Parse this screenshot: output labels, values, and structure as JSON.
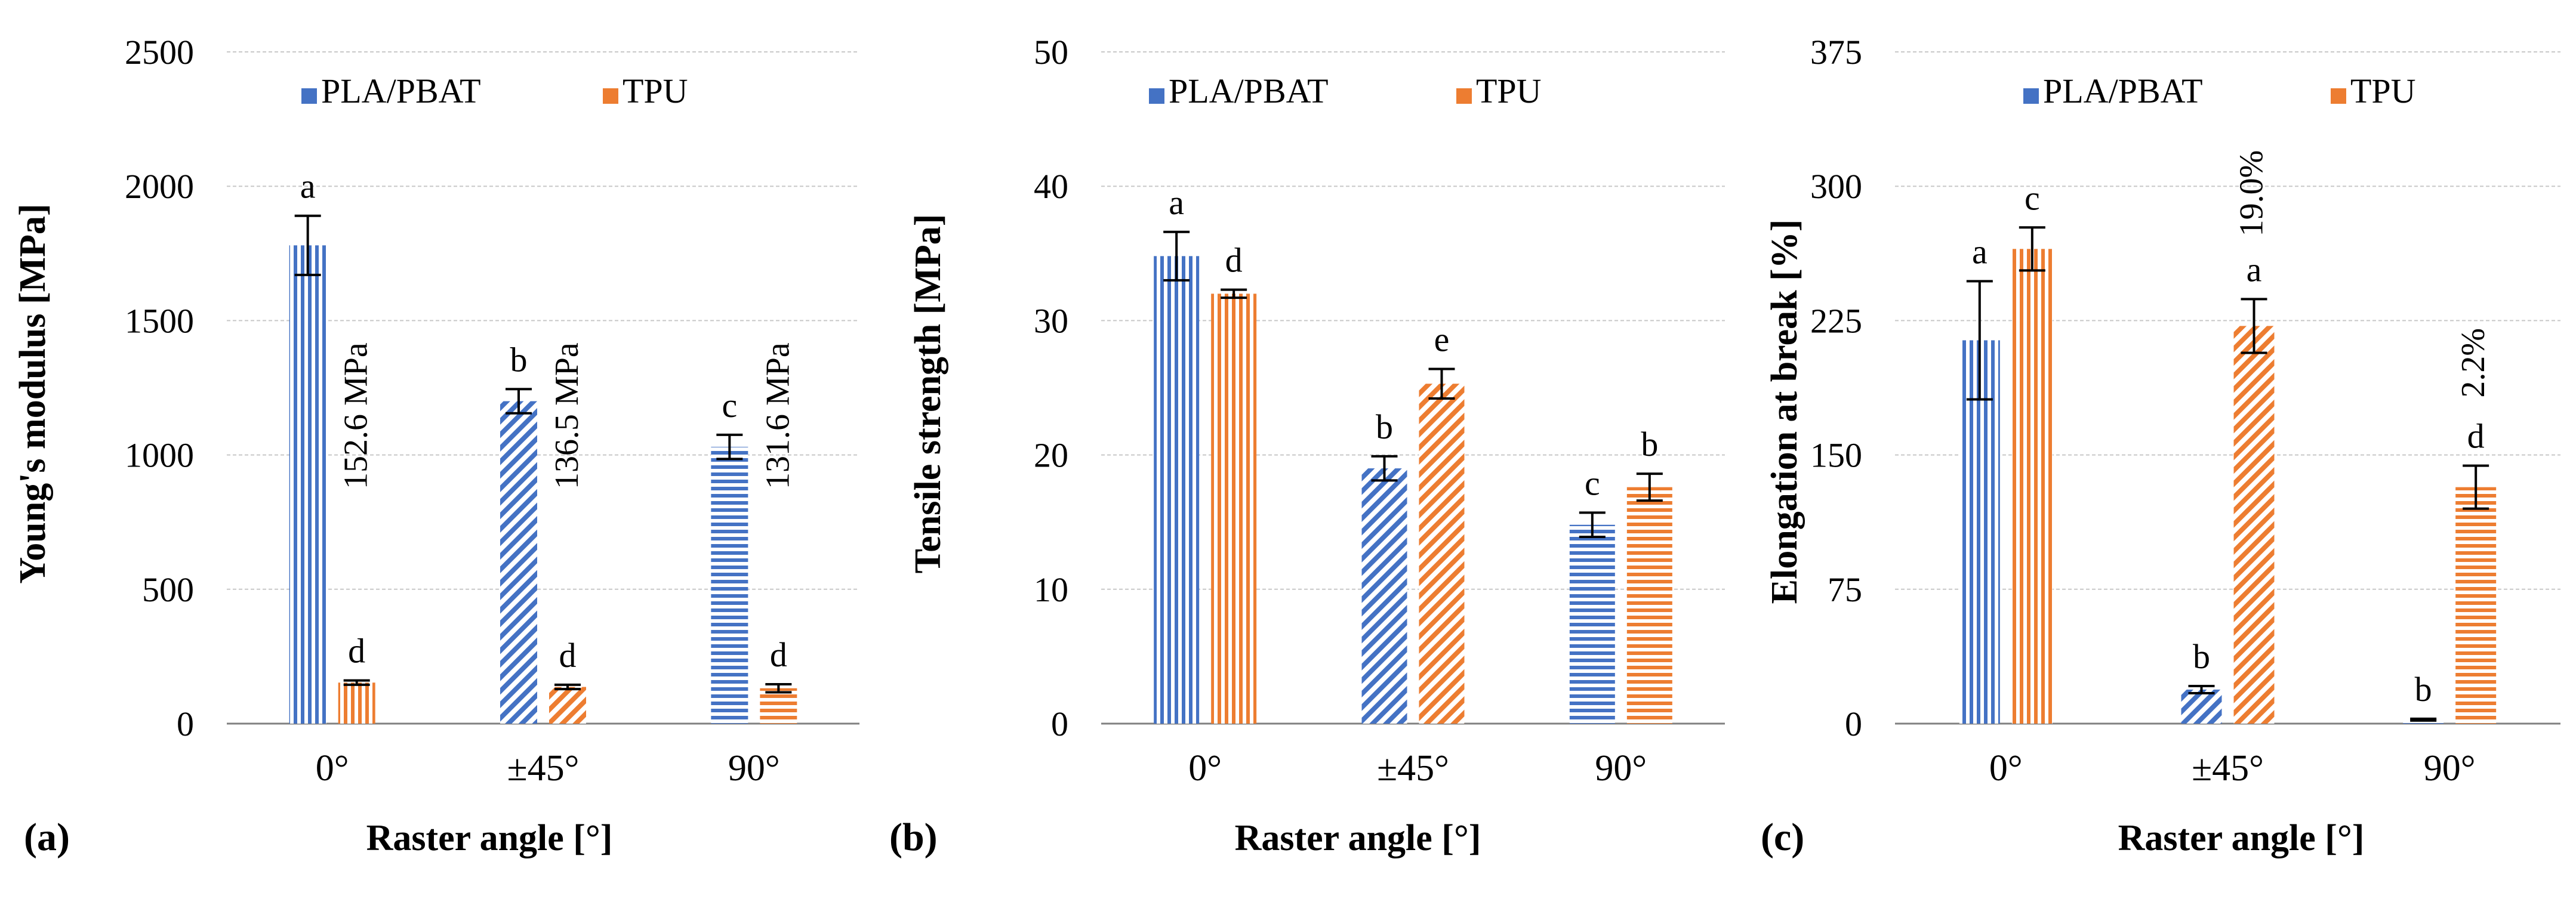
{
  "colors": {
    "pla": "#4472C4",
    "tpu": "#ED7D31",
    "grid": "#c8c8c8",
    "axis": "#808080"
  },
  "chart_data": [
    {
      "type": "bar",
      "panel_label": "(a)",
      "xlabel": "Raster angle [°]",
      "ylabel": "Young's  modulus  [MPa]",
      "ylim": [
        0,
        2500
      ],
      "yticks": [
        0,
        500,
        1000,
        1500,
        2000,
        2500
      ],
      "categories": [
        "0°",
        "±45°",
        "90°"
      ],
      "series": [
        {
          "name": "PLA/PBAT",
          "values": [
            1780,
            1200,
            1030
          ],
          "errors": [
            110,
            45,
            45
          ],
          "letters": [
            "a",
            "b",
            "c"
          ]
        },
        {
          "name": "TPU",
          "values": [
            152.6,
            136.5,
            131.6
          ],
          "errors": [
            8,
            8,
            15
          ],
          "letters": [
            "d",
            "d",
            "d"
          ]
        }
      ],
      "annotations": [
        "152.6 MPa",
        "136.5 MPa",
        "131.6 MPa"
      ],
      "legend": [
        "PLA/PBAT",
        "TPU"
      ]
    },
    {
      "type": "bar",
      "panel_label": "(b)",
      "xlabel": "Raster angle [°]",
      "ylabel": "Tensile strength [MPa]",
      "ylim": [
        0,
        50
      ],
      "yticks": [
        0,
        10,
        20,
        30,
        40,
        50
      ],
      "categories": [
        "0°",
        "±45°",
        "90°"
      ],
      "series": [
        {
          "name": "PLA/PBAT",
          "values": [
            34.8,
            19.0,
            14.8
          ],
          "errors": [
            1.8,
            0.9,
            0.9
          ],
          "letters": [
            "a",
            "b",
            "c"
          ]
        },
        {
          "name": "TPU",
          "values": [
            32.0,
            25.3,
            17.6
          ],
          "errors": [
            0.3,
            1.1,
            1.0
          ],
          "letters": [
            "d",
            "e",
            "b"
          ]
        }
      ],
      "annotations": [],
      "legend": [
        "PLA/PBAT",
        "TPU"
      ]
    },
    {
      "type": "bar",
      "panel_label": "(c)",
      "xlabel": "Raster angle [°]",
      "ylabel": "Elongation  at break  [%]",
      "ylim": [
        0,
        375
      ],
      "yticks": [
        0,
        75,
        150,
        225,
        300,
        375
      ],
      "categories": [
        "0°",
        "±45°",
        "90°"
      ],
      "series": [
        {
          "name": "PLA/PBAT",
          "values": [
            214,
            19.0,
            2.2
          ],
          "errors": [
            33,
            2,
            0.5
          ],
          "letters": [
            "a",
            "b",
            "b"
          ]
        },
        {
          "name": "TPU",
          "values": [
            265,
            222,
            132
          ],
          "errors": [
            12,
            15,
            12
          ],
          "letters": [
            "c",
            "a",
            "d"
          ]
        }
      ],
      "annotations": [
        "",
        "19.0%",
        "2.2%"
      ],
      "legend": [
        "PLA/PBAT",
        "TPU"
      ]
    }
  ]
}
